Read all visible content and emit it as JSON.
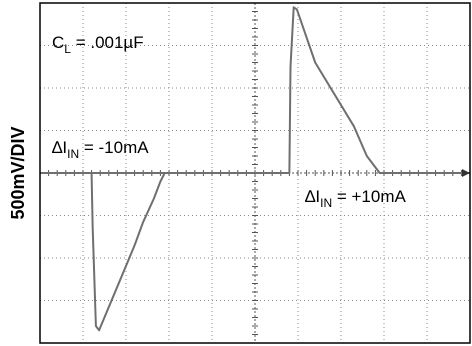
{
  "chart_data": {
    "type": "line",
    "ylabel": "500mV/DIV",
    "divisions": {
      "x": 10,
      "y": 8
    },
    "grid": true,
    "annotations": {
      "capacitance": {
        "main": "C",
        "sub": "L",
        "rest": " = .001µF"
      },
      "step_down": {
        "prefix": "∆I",
        "sub": "IN",
        "rest": " = -10mA"
      },
      "step_up": {
        "prefix": "∆I",
        "sub": "IN",
        "rest": " = +10mA"
      }
    },
    "series": [
      {
        "points": [
          [
            0,
            0
          ],
          [
            2.4,
            0
          ],
          [
            2.4,
            -0.05
          ],
          [
            2.45,
            -1.3
          ],
          [
            2.6,
            -3.6
          ],
          [
            2.75,
            -3.7
          ],
          [
            4.4,
            -1.7
          ],
          [
            4.8,
            -1.15
          ],
          [
            5.3,
            -0.6
          ],
          [
            5.6,
            -0.2
          ],
          [
            5.8,
            0
          ],
          [
            10,
            0
          ]
        ]
      },
      {
        "points": [
          [
            0,
            0
          ],
          [
            11.6,
            0
          ],
          [
            11.6,
            0.05
          ],
          [
            11.65,
            2.5
          ],
          [
            11.8,
            3.9
          ],
          [
            11.95,
            3.85
          ],
          [
            12.8,
            2.6
          ],
          [
            14.6,
            1.1
          ],
          [
            15.2,
            0.4
          ],
          [
            15.8,
            0
          ],
          [
            20,
            0
          ]
        ]
      }
    ]
  }
}
